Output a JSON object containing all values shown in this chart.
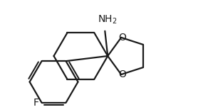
{
  "background_color": "#ffffff",
  "line_color": "#1a1a1a",
  "line_width": 1.6,
  "font_size": 10,
  "figsize": [
    2.92,
    1.58
  ],
  "dpi": 100,
  "xlim": [
    0,
    10
  ],
  "ylim": [
    0,
    6
  ]
}
